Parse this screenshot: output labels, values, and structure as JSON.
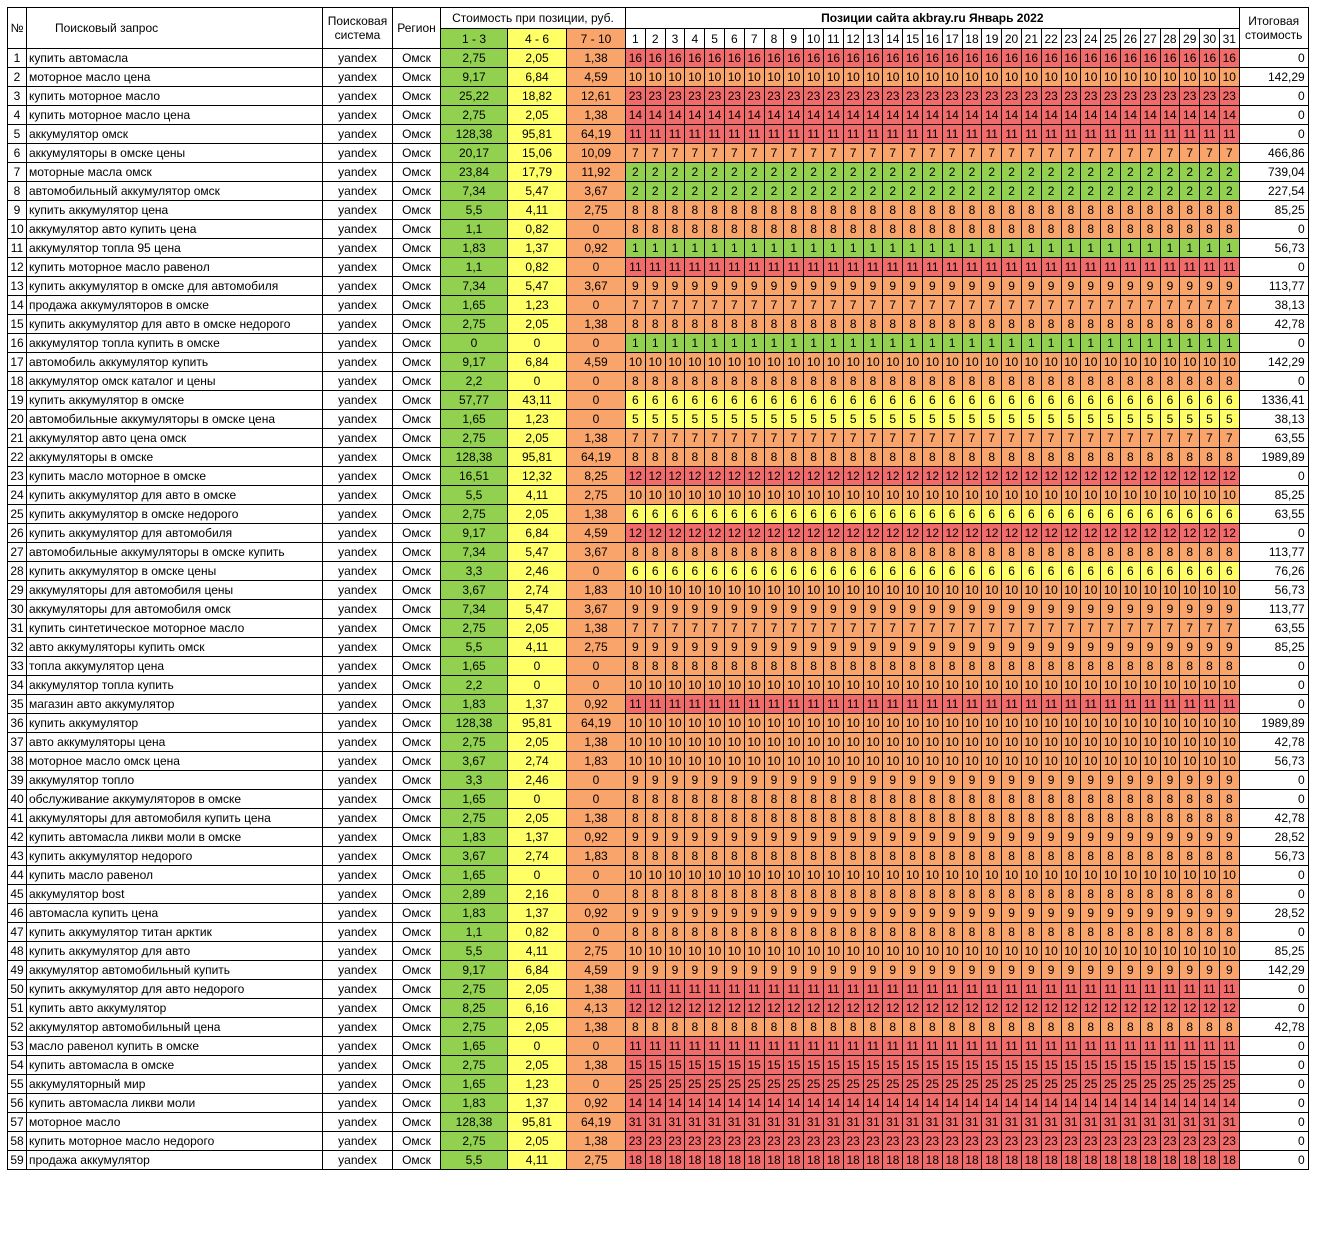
{
  "headers": {
    "num": "№",
    "query": "Поисковый запрос",
    "engine": "Поисковая система",
    "region": "Регион",
    "cost_group": "Стоимость при позиции, руб.",
    "cost_ranges": [
      "1 - 3",
      "4 - 6",
      "7 - 10"
    ],
    "positions_title": "Позиции сайта akbray.ru Январь 2022",
    "days": [
      "1",
      "2",
      "3",
      "4",
      "5",
      "6",
      "7",
      "8",
      "9",
      "10",
      "11",
      "12",
      "13",
      "14",
      "15",
      "16",
      "17",
      "18",
      "19",
      "20",
      "21",
      "22",
      "23",
      "24",
      "25",
      "26",
      "27",
      "28",
      "29",
      "30",
      "31"
    ],
    "total": "Итоговая стоимость"
  },
  "colors": {
    "red": "#f26b6b",
    "orange": "#f8a46a",
    "yellow": "#ffff66",
    "green": "#92d050"
  },
  "rows": [
    {
      "n": "1",
      "q": "купить автомасла",
      "e": "yandex",
      "r": "Омск",
      "c1": "2,75",
      "c2": "2,05",
      "c3": "1,38",
      "p": "16",
      "t": "0"
    },
    {
      "n": "2",
      "q": "моторное масло цена",
      "e": "yandex",
      "r": "Омск",
      "c1": "9,17",
      "c2": "6,84",
      "c3": "4,59",
      "p": "10",
      "t": "142,29"
    },
    {
      "n": "3",
      "q": "купить моторное масло",
      "e": "yandex",
      "r": "Омск",
      "c1": "25,22",
      "c2": "18,82",
      "c3": "12,61",
      "p": "23",
      "t": "0"
    },
    {
      "n": "4",
      "q": "купить моторное масло цена",
      "e": "yandex",
      "r": "Омск",
      "c1": "2,75",
      "c2": "2,05",
      "c3": "1,38",
      "p": "14",
      "t": "0"
    },
    {
      "n": "5",
      "q": "аккумулятор омск",
      "e": "yandex",
      "r": "Омск",
      "c1": "128,38",
      "c2": "95,81",
      "c3": "64,19",
      "p": "11",
      "t": "0"
    },
    {
      "n": "6",
      "q": "аккумуляторы в омске цены",
      "e": "yandex",
      "r": "Омск",
      "c1": "20,17",
      "c2": "15,06",
      "c3": "10,09",
      "p": "7",
      "t": "466,86"
    },
    {
      "n": "7",
      "q": "моторные масла омск",
      "e": "yandex",
      "r": "Омск",
      "c1": "23,84",
      "c2": "17,79",
      "c3": "11,92",
      "p": "2",
      "t": "739,04"
    },
    {
      "n": "8",
      "q": "автомобильный аккумулятор омск",
      "e": "yandex",
      "r": "Омск",
      "c1": "7,34",
      "c2": "5,47",
      "c3": "3,67",
      "p": "2",
      "t": "227,54"
    },
    {
      "n": "9",
      "q": "купить аккумулятор цена",
      "e": "yandex",
      "r": "Омск",
      "c1": "5,5",
      "c2": "4,11",
      "c3": "2,75",
      "p": "8",
      "t": "85,25"
    },
    {
      "n": "10",
      "q": "аккумулятор авто купить цена",
      "e": "yandex",
      "r": "Омск",
      "c1": "1,1",
      "c2": "0,82",
      "c3": "0",
      "p": "8",
      "t": "0"
    },
    {
      "n": "11",
      "q": "аккумулятор топла 95 цена",
      "e": "yandex",
      "r": "Омск",
      "c1": "1,83",
      "c2": "1,37",
      "c3": "0,92",
      "p": "1",
      "t": "56,73"
    },
    {
      "n": "12",
      "q": "купить моторное масло равенол",
      "e": "yandex",
      "r": "Омск",
      "c1": "1,1",
      "c2": "0,82",
      "c3": "0",
      "p": "11",
      "t": "0"
    },
    {
      "n": "13",
      "q": "купить аккумулятор в омске для автомобиля",
      "e": "yandex",
      "r": "Омск",
      "c1": "7,34",
      "c2": "5,47",
      "c3": "3,67",
      "p": "9",
      "t": "113,77"
    },
    {
      "n": "14",
      "q": "продажа аккумуляторов в омске",
      "e": "yandex",
      "r": "Омск",
      "c1": "1,65",
      "c2": "1,23",
      "c3": "0",
      "p": "7",
      "t": "38,13"
    },
    {
      "n": "15",
      "q": "купить аккумулятор для авто в омске недорого",
      "e": "yandex",
      "r": "Омск",
      "c1": "2,75",
      "c2": "2,05",
      "c3": "1,38",
      "p": "8",
      "t": "42,78"
    },
    {
      "n": "16",
      "q": "аккумулятор топла купить в омске",
      "e": "yandex",
      "r": "Омск",
      "c1": "0",
      "c2": "0",
      "c3": "0",
      "p": "1",
      "t": "0"
    },
    {
      "n": "17",
      "q": "автомобиль аккумулятор купить",
      "e": "yandex",
      "r": "Омск",
      "c1": "9,17",
      "c2": "6,84",
      "c3": "4,59",
      "p": "10",
      "t": "142,29"
    },
    {
      "n": "18",
      "q": "аккумулятор омск каталог и цены",
      "e": "yandex",
      "r": "Омск",
      "c1": "2,2",
      "c2": "0",
      "c3": "0",
      "p": "8",
      "t": "0"
    },
    {
      "n": "19",
      "q": "купить аккумулятор в омске",
      "e": "yandex",
      "r": "Омск",
      "c1": "57,77",
      "c2": "43,11",
      "c3": "0",
      "p": "6",
      "t": "1336,41"
    },
    {
      "n": "20",
      "q": "автомобильные аккумуляторы в омске цена",
      "e": "yandex",
      "r": "Омск",
      "c1": "1,65",
      "c2": "1,23",
      "c3": "0",
      "p": "5",
      "t": "38,13"
    },
    {
      "n": "21",
      "q": "аккумулятор авто цена омск",
      "e": "yandex",
      "r": "Омск",
      "c1": "2,75",
      "c2": "2,05",
      "c3": "1,38",
      "p": "7",
      "t": "63,55"
    },
    {
      "n": "22",
      "q": "аккумуляторы в омске",
      "e": "yandex",
      "r": "Омск",
      "c1": "128,38",
      "c2": "95,81",
      "c3": "64,19",
      "p": "8",
      "t": "1989,89"
    },
    {
      "n": "23",
      "q": "купить масло моторное в омске",
      "e": "yandex",
      "r": "Омск",
      "c1": "16,51",
      "c2": "12,32",
      "c3": "8,25",
      "p": "12",
      "t": "0"
    },
    {
      "n": "24",
      "q": "купить аккумулятор для авто в омске",
      "e": "yandex",
      "r": "Омск",
      "c1": "5,5",
      "c2": "4,11",
      "c3": "2,75",
      "p": "10",
      "t": "85,25"
    },
    {
      "n": "25",
      "q": "купить аккумулятор в омске недорого",
      "e": "yandex",
      "r": "Омск",
      "c1": "2,75",
      "c2": "2,05",
      "c3": "1,38",
      "p": "6",
      "t": "63,55"
    },
    {
      "n": "26",
      "q": "купить аккумулятор для автомобиля",
      "e": "yandex",
      "r": "Омск",
      "c1": "9,17",
      "c2": "6,84",
      "c3": "4,59",
      "p": "12",
      "t": "0"
    },
    {
      "n": "27",
      "q": "автомобильные аккумуляторы в омске купить",
      "e": "yandex",
      "r": "Омск",
      "c1": "7,34",
      "c2": "5,47",
      "c3": "3,67",
      "p": "8",
      "t": "113,77"
    },
    {
      "n": "28",
      "q": "купить аккумулятор в омске цены",
      "e": "yandex",
      "r": "Омск",
      "c1": "3,3",
      "c2": "2,46",
      "c3": "0",
      "p": "6",
      "t": "76,26"
    },
    {
      "n": "29",
      "q": "аккумуляторы для автомобиля цены",
      "e": "yandex",
      "r": "Омск",
      "c1": "3,67",
      "c2": "2,74",
      "c3": "1,83",
      "p": "10",
      "t": "56,73"
    },
    {
      "n": "30",
      "q": "аккумуляторы для автомобиля омск",
      "e": "yandex",
      "r": "Омск",
      "c1": "7,34",
      "c2": "5,47",
      "c3": "3,67",
      "p": "9",
      "t": "113,77"
    },
    {
      "n": "31",
      "q": "купить синтетическое моторное масло",
      "e": "yandex",
      "r": "Омск",
      "c1": "2,75",
      "c2": "2,05",
      "c3": "1,38",
      "p": "7",
      "t": "63,55"
    },
    {
      "n": "32",
      "q": "авто аккумуляторы купить омск",
      "e": "yandex",
      "r": "Омск",
      "c1": "5,5",
      "c2": "4,11",
      "c3": "2,75",
      "p": "9",
      "t": "85,25"
    },
    {
      "n": "33",
      "q": "топла аккумулятор цена",
      "e": "yandex",
      "r": "Омск",
      "c1": "1,65",
      "c2": "0",
      "c3": "0",
      "p": "8",
      "t": "0"
    },
    {
      "n": "34",
      "q": "аккумулятор топла купить",
      "e": "yandex",
      "r": "Омск",
      "c1": "2,2",
      "c2": "0",
      "c3": "0",
      "p": "10",
      "t": "0"
    },
    {
      "n": "35",
      "q": "магазин авто аккумулятор",
      "e": "yandex",
      "r": "Омск",
      "c1": "1,83",
      "c2": "1,37",
      "c3": "0,92",
      "p": "11",
      "t": "0"
    },
    {
      "n": "36",
      "q": "купить аккумулятор",
      "e": "yandex",
      "r": "Омск",
      "c1": "128,38",
      "c2": "95,81",
      "c3": "64,19",
      "p": "10",
      "t": "1989,89"
    },
    {
      "n": "37",
      "q": "авто аккумуляторы цена",
      "e": "yandex",
      "r": "Омск",
      "c1": "2,75",
      "c2": "2,05",
      "c3": "1,38",
      "p": "10",
      "t": "42,78"
    },
    {
      "n": "38",
      "q": "моторное масло омск цена",
      "e": "yandex",
      "r": "Омск",
      "c1": "3,67",
      "c2": "2,74",
      "c3": "1,83",
      "p": "10",
      "t": "56,73"
    },
    {
      "n": "39",
      "q": "аккумулятор топло",
      "e": "yandex",
      "r": "Омск",
      "c1": "3,3",
      "c2": "2,46",
      "c3": "0",
      "p": "9",
      "t": "0"
    },
    {
      "n": "40",
      "q": "обслуживание аккумуляторов в омске",
      "e": "yandex",
      "r": "Омск",
      "c1": "1,65",
      "c2": "0",
      "c3": "0",
      "p": "8",
      "t": "0"
    },
    {
      "n": "41",
      "q": "аккумуляторы для автомобиля купить цена",
      "e": "yandex",
      "r": "Омск",
      "c1": "2,75",
      "c2": "2,05",
      "c3": "1,38",
      "p": "8",
      "t": "42,78"
    },
    {
      "n": "42",
      "q": "купить автомасла ликви моли в омске",
      "e": "yandex",
      "r": "Омск",
      "c1": "1,83",
      "c2": "1,37",
      "c3": "0,92",
      "p": "9",
      "t": "28,52"
    },
    {
      "n": "43",
      "q": "купить аккумулятор недорого",
      "e": "yandex",
      "r": "Омск",
      "c1": "3,67",
      "c2": "2,74",
      "c3": "1,83",
      "p": "8",
      "t": "56,73"
    },
    {
      "n": "44",
      "q": "купить масло равенол",
      "e": "yandex",
      "r": "Омск",
      "c1": "1,65",
      "c2": "0",
      "c3": "0",
      "p": "10",
      "t": "0"
    },
    {
      "n": "45",
      "q": "аккумулятор bost",
      "e": "yandex",
      "r": "Омск",
      "c1": "2,89",
      "c2": "2,16",
      "c3": "0",
      "p": "8",
      "t": "0"
    },
    {
      "n": "46",
      "q": "автомасла купить цена",
      "e": "yandex",
      "r": "Омск",
      "c1": "1,83",
      "c2": "1,37",
      "c3": "0,92",
      "p": "9",
      "t": "28,52"
    },
    {
      "n": "47",
      "q": "купить аккумулятор титан арктик",
      "e": "yandex",
      "r": "Омск",
      "c1": "1,1",
      "c2": "0,82",
      "c3": "0",
      "p": "8",
      "t": "0"
    },
    {
      "n": "48",
      "q": "купить аккумулятор для авто",
      "e": "yandex",
      "r": "Омск",
      "c1": "5,5",
      "c2": "4,11",
      "c3": "2,75",
      "p": "10",
      "t": "85,25"
    },
    {
      "n": "49",
      "q": "аккумулятор автомобильный купить",
      "e": "yandex",
      "r": "Омск",
      "c1": "9,17",
      "c2": "6,84",
      "c3": "4,59",
      "p": "9",
      "t": "142,29"
    },
    {
      "n": "50",
      "q": "купить аккумулятор для авто недорого",
      "e": "yandex",
      "r": "Омск",
      "c1": "2,75",
      "c2": "2,05",
      "c3": "1,38",
      "p": "11",
      "t": "0"
    },
    {
      "n": "51",
      "q": "купить авто аккумулятор",
      "e": "yandex",
      "r": "Омск",
      "c1": "8,25",
      "c2": "6,16",
      "c3": "4,13",
      "p": "12",
      "t": "0"
    },
    {
      "n": "52",
      "q": "аккумулятор автомобильный цена",
      "e": "yandex",
      "r": "Омск",
      "c1": "2,75",
      "c2": "2,05",
      "c3": "1,38",
      "p": "8",
      "t": "42,78"
    },
    {
      "n": "53",
      "q": "масло равенол купить в омске",
      "e": "yandex",
      "r": "Омск",
      "c1": "1,65",
      "c2": "0",
      "c3": "0",
      "p": "11",
      "t": "0"
    },
    {
      "n": "54",
      "q": "купить автомасла в омске",
      "e": "yandex",
      "r": "Омск",
      "c1": "2,75",
      "c2": "2,05",
      "c3": "1,38",
      "p": "15",
      "t": "0"
    },
    {
      "n": "55",
      "q": "аккумуляторный мир",
      "e": "yandex",
      "r": "Омск",
      "c1": "1,65",
      "c2": "1,23",
      "c3": "0",
      "p": "25",
      "t": "0"
    },
    {
      "n": "56",
      "q": "купить автомасла ликви моли",
      "e": "yandex",
      "r": "Омск",
      "c1": "1,83",
      "c2": "1,37",
      "c3": "0,92",
      "p": "14",
      "t": "0"
    },
    {
      "n": "57",
      "q": "моторное масло",
      "e": "yandex",
      "r": "Омск",
      "c1": "128,38",
      "c2": "95,81",
      "c3": "64,19",
      "p": "31",
      "t": "0"
    },
    {
      "n": "58",
      "q": "купить моторное масло недорого",
      "e": "yandex",
      "r": "Омск",
      "c1": "2,75",
      "c2": "2,05",
      "c3": "1,38",
      "p": "23",
      "t": "0"
    },
    {
      "n": "59",
      "q": "продажа аккумулятор",
      "e": "yandex",
      "r": "Омск",
      "c1": "5,5",
      "c2": "4,11",
      "c3": "2,75",
      "p": "18",
      "t": "0"
    }
  ]
}
